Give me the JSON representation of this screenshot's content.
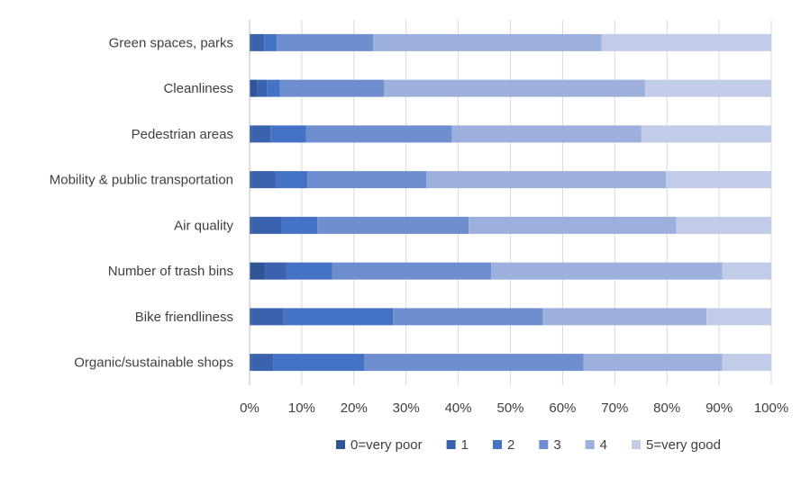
{
  "chart_data": {
    "type": "bar",
    "orientation": "horizontal",
    "stacking": "percent",
    "categories": [
      "Green spaces, parks",
      "Cleanliness",
      "Pedestrian areas",
      "Mobility & public transportation",
      "Air quality",
      "Number of trash bins",
      "Bike friendliness",
      "Organic/sustainable shops"
    ],
    "series": [
      {
        "name": "0=very poor",
        "color": "#2F5597",
        "values": [
          0.4,
          1.4,
          0.4,
          0.4,
          0.4,
          3.0,
          0.4,
          0.4
        ]
      },
      {
        "name": "1",
        "color": "#3A62AE",
        "values": [
          2.4,
          1.9,
          3.6,
          4.6,
          5.8,
          4.0,
          6.0,
          4.1
        ]
      },
      {
        "name": "2",
        "color": "#4472C4",
        "values": [
          2.4,
          2.5,
          6.8,
          6.1,
          6.8,
          8.8,
          21.1,
          17.5
        ]
      },
      {
        "name": "3",
        "color": "#6F8ED0",
        "values": [
          18.5,
          20.0,
          28.0,
          22.8,
          29.0,
          30.5,
          28.7,
          42.0
        ]
      },
      {
        "name": "4",
        "color": "#9DAFDC",
        "values": [
          43.8,
          50.0,
          36.3,
          45.9,
          39.8,
          44.3,
          31.4,
          26.6
        ]
      },
      {
        "name": "5=very good",
        "color": "#C0CCE8",
        "values": [
          32.5,
          24.2,
          24.9,
          20.2,
          18.2,
          9.4,
          12.4,
          9.4
        ]
      }
    ],
    "x_ticks": [
      "0%",
      "10%",
      "20%",
      "30%",
      "40%",
      "50%",
      "60%",
      "70%",
      "80%",
      "90%",
      "100%"
    ],
    "xlim": [
      0,
      100
    ],
    "title": "",
    "xlabel": "",
    "ylabel": "",
    "grid": "vertical",
    "legend_position": "bottom",
    "colors": {
      "grid": "#D9D9D9",
      "text": "#404040"
    }
  }
}
